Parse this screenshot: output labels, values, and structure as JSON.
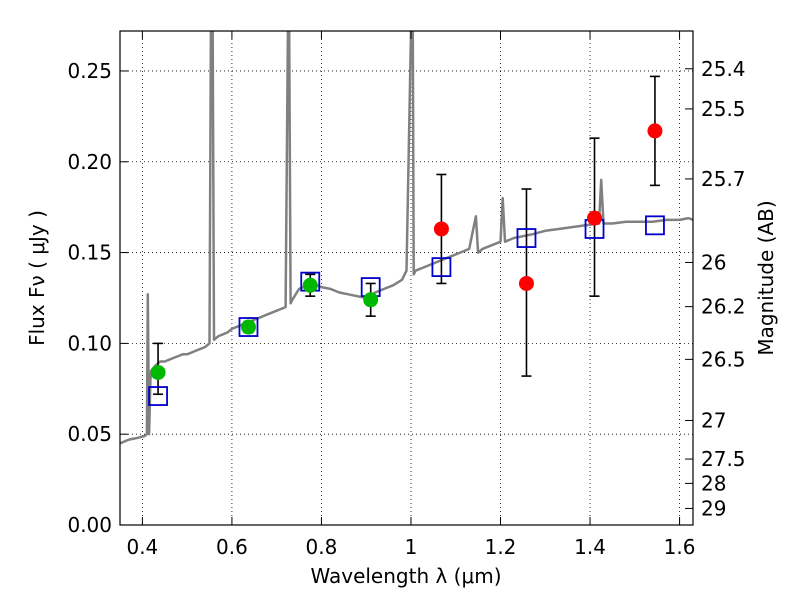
{
  "chart_data": {
    "type": "scatter",
    "xlabel": "Wavelength  λ (μm)",
    "ylabel": "Flux  Fν  ( μJy )",
    "ylabel_right": "Magnitude (AB)",
    "xlim": [
      0.35,
      1.63
    ],
    "ylim": [
      0.0,
      0.272
    ],
    "grid": true,
    "x_ticks": [
      {
        "value": 0.4,
        "label": "0.4"
      },
      {
        "value": 0.6,
        "label": "0.6"
      },
      {
        "value": 0.8,
        "label": "0.8"
      },
      {
        "value": 1.0,
        "label": "1"
      },
      {
        "value": 1.2,
        "label": "1.2"
      },
      {
        "value": 1.4,
        "label": "1.4"
      },
      {
        "value": 1.6,
        "label": "1.6"
      }
    ],
    "y_ticks": [
      {
        "value": 0.0,
        "label": "0.00"
      },
      {
        "value": 0.05,
        "label": "0.05"
      },
      {
        "value": 0.1,
        "label": "0.10"
      },
      {
        "value": 0.15,
        "label": "0.15"
      },
      {
        "value": 0.2,
        "label": "0.20"
      },
      {
        "value": 0.25,
        "label": "0.25"
      }
    ],
    "mag_ticks": [
      {
        "value": 25.4,
        "label": "25.4"
      },
      {
        "value": 25.5,
        "label": "25.5"
      },
      {
        "value": 25.7,
        "label": "25.7"
      },
      {
        "value": 26.0,
        "label": "26"
      },
      {
        "value": 26.2,
        "label": "26.2"
      },
      {
        "value": 26.5,
        "label": "26.5"
      },
      {
        "value": 27.0,
        "label": "27"
      },
      {
        "value": 27.5,
        "label": "27.5"
      },
      {
        "value": 28.0,
        "label": "28"
      },
      {
        "value": 29.0,
        "label": "29"
      }
    ],
    "series": [
      {
        "kind": "line",
        "color": "#808080",
        "x": [
          0.35,
          0.37,
          0.39,
          0.405,
          0.41,
          0.412,
          0.415,
          0.418,
          0.42,
          0.43,
          0.44,
          0.45,
          0.46,
          0.47,
          0.48,
          0.49,
          0.5,
          0.51,
          0.52,
          0.53,
          0.54,
          0.55,
          0.553,
          0.555,
          0.557,
          0.56,
          0.57,
          0.58,
          0.59,
          0.6,
          0.62,
          0.64,
          0.66,
          0.68,
          0.7,
          0.72,
          0.725,
          0.728,
          0.731,
          0.735,
          0.75,
          0.76,
          0.77,
          0.78,
          0.79,
          0.8,
          0.82,
          0.84,
          0.86,
          0.88,
          0.9,
          0.92,
          0.94,
          0.96,
          0.98,
          0.99,
          1.0,
          1.002,
          1.004,
          1.006,
          1.01,
          1.03,
          1.05,
          1.07,
          1.09,
          1.11,
          1.13,
          1.145,
          1.15,
          1.16,
          1.18,
          1.2,
          1.205,
          1.21,
          1.23,
          1.25,
          1.27,
          1.3,
          1.33,
          1.36,
          1.39,
          1.42,
          1.425,
          1.43,
          1.45,
          1.48,
          1.51,
          1.54,
          1.57,
          1.6,
          1.62,
          1.63
        ],
        "y": [
          0.045,
          0.047,
          0.048,
          0.049,
          0.05,
          0.127,
          0.05,
          0.08,
          0.085,
          0.088,
          0.09,
          0.09,
          0.091,
          0.092,
          0.093,
          0.094,
          0.094,
          0.095,
          0.096,
          0.097,
          0.098,
          0.1,
          0.272,
          0.272,
          0.272,
          0.102,
          0.104,
          0.105,
          0.106,
          0.108,
          0.11,
          0.112,
          0.114,
          0.116,
          0.118,
          0.12,
          0.272,
          0.272,
          0.122,
          0.124,
          0.13,
          0.131,
          0.132,
          0.133,
          0.132,
          0.131,
          0.13,
          0.128,
          0.127,
          0.126,
          0.125,
          0.128,
          0.13,
          0.132,
          0.135,
          0.14,
          0.272,
          0.272,
          0.272,
          0.138,
          0.14,
          0.142,
          0.144,
          0.146,
          0.148,
          0.15,
          0.152,
          0.17,
          0.15,
          0.152,
          0.154,
          0.156,
          0.18,
          0.156,
          0.158,
          0.159,
          0.16,
          0.162,
          0.163,
          0.164,
          0.165,
          0.166,
          0.19,
          0.166,
          0.166,
          0.167,
          0.167,
          0.167,
          0.168,
          0.168,
          0.169,
          0.168
        ]
      },
      {
        "kind": "markers",
        "marker": "open-square",
        "color": "#0000cc",
        "x": [
          0.435,
          0.637,
          0.775,
          0.91,
          1.068,
          1.258,
          1.41,
          1.545
        ],
        "y": [
          0.071,
          0.109,
          0.134,
          0.131,
          0.142,
          0.158,
          0.163,
          0.165
        ]
      },
      {
        "kind": "markers",
        "marker": "filled-circle",
        "color": "#00b800",
        "x": [
          0.435,
          0.637,
          0.775,
          0.91
        ],
        "y": [
          0.084,
          0.109,
          0.132,
          0.124
        ],
        "err_low": [
          0.072,
          0.106,
          0.126,
          0.115
        ],
        "err_high": [
          0.1,
          0.112,
          0.138,
          0.133
        ]
      },
      {
        "kind": "markers",
        "marker": "filled-circle",
        "color": "#ff0000",
        "x": [
          1.068,
          1.258,
          1.41,
          1.545
        ],
        "y": [
          0.163,
          0.133,
          0.169,
          0.217
        ],
        "err_low": [
          0.133,
          0.082,
          0.126,
          0.187
        ],
        "err_high": [
          0.193,
          0.185,
          0.213,
          0.247
        ]
      }
    ]
  }
}
